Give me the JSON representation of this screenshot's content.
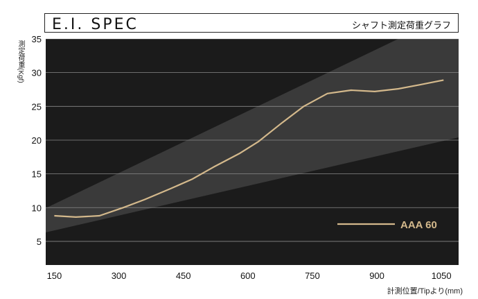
{
  "header": {
    "title": "E.I. SPEC",
    "subtitle": "シャフト測定荷重グラフ"
  },
  "chart_data": {
    "type": "line",
    "xlabel": "計測位置/Tipより(mm)",
    "ylabel": "測定荷重(Kgf)",
    "xlim": [
      130,
      1090
    ],
    "ylim": [
      1.5,
      35
    ],
    "x_ticks": [
      150,
      300,
      450,
      600,
      750,
      900,
      1050
    ],
    "y_ticks": [
      5,
      10,
      15,
      20,
      25,
      30,
      35
    ],
    "grid": "horizontal",
    "legend_position": "bottom-right",
    "colors": {
      "background": "#1b1b1b",
      "band": "#3a3a3a",
      "line": "#d4b98c",
      "grid": "#8a8a8a"
    },
    "series": [
      {
        "name": "AAA 60",
        "x": [
          150,
          200,
          255,
          310,
          360,
          420,
          470,
          520,
          580,
          625,
          680,
          730,
          785,
          840,
          895,
          950,
          1000,
          1055
        ],
        "y": [
          8.8,
          8.6,
          8.8,
          10.0,
          11.2,
          12.8,
          14.2,
          16.0,
          18.0,
          19.8,
          22.6,
          25.0,
          26.9,
          27.4,
          27.2,
          27.6,
          28.2,
          28.9
        ]
      }
    ]
  }
}
